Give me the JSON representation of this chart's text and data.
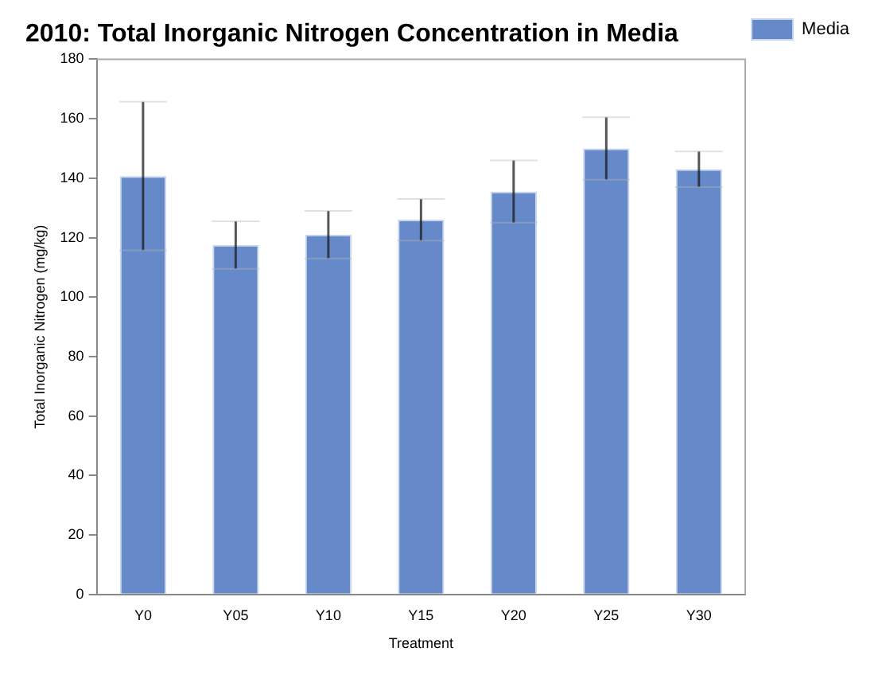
{
  "chart_data": {
    "type": "bar",
    "title": "2010: Total Inorganic Nitrogen Concentration in Media",
    "xlabel": "Treatment",
    "ylabel": "Total Inorganic Nitrogen (mg/kg)",
    "categories": [
      "Y0",
      "Y05",
      "Y10",
      "Y15",
      "Y20",
      "Y25",
      "Y30"
    ],
    "series": [
      {
        "name": "Media",
        "color": "#6689c9",
        "values": [
          140.7,
          117.5,
          121,
          126,
          135.5,
          150,
          143
        ],
        "errors": [
          25,
          8,
          8,
          7,
          10.5,
          10.5,
          6
        ]
      }
    ],
    "ylim": [
      0,
      180
    ],
    "yticks": [
      0,
      20,
      40,
      60,
      80,
      100,
      120,
      140,
      160,
      180
    ],
    "grid": false,
    "legend": "top right"
  }
}
